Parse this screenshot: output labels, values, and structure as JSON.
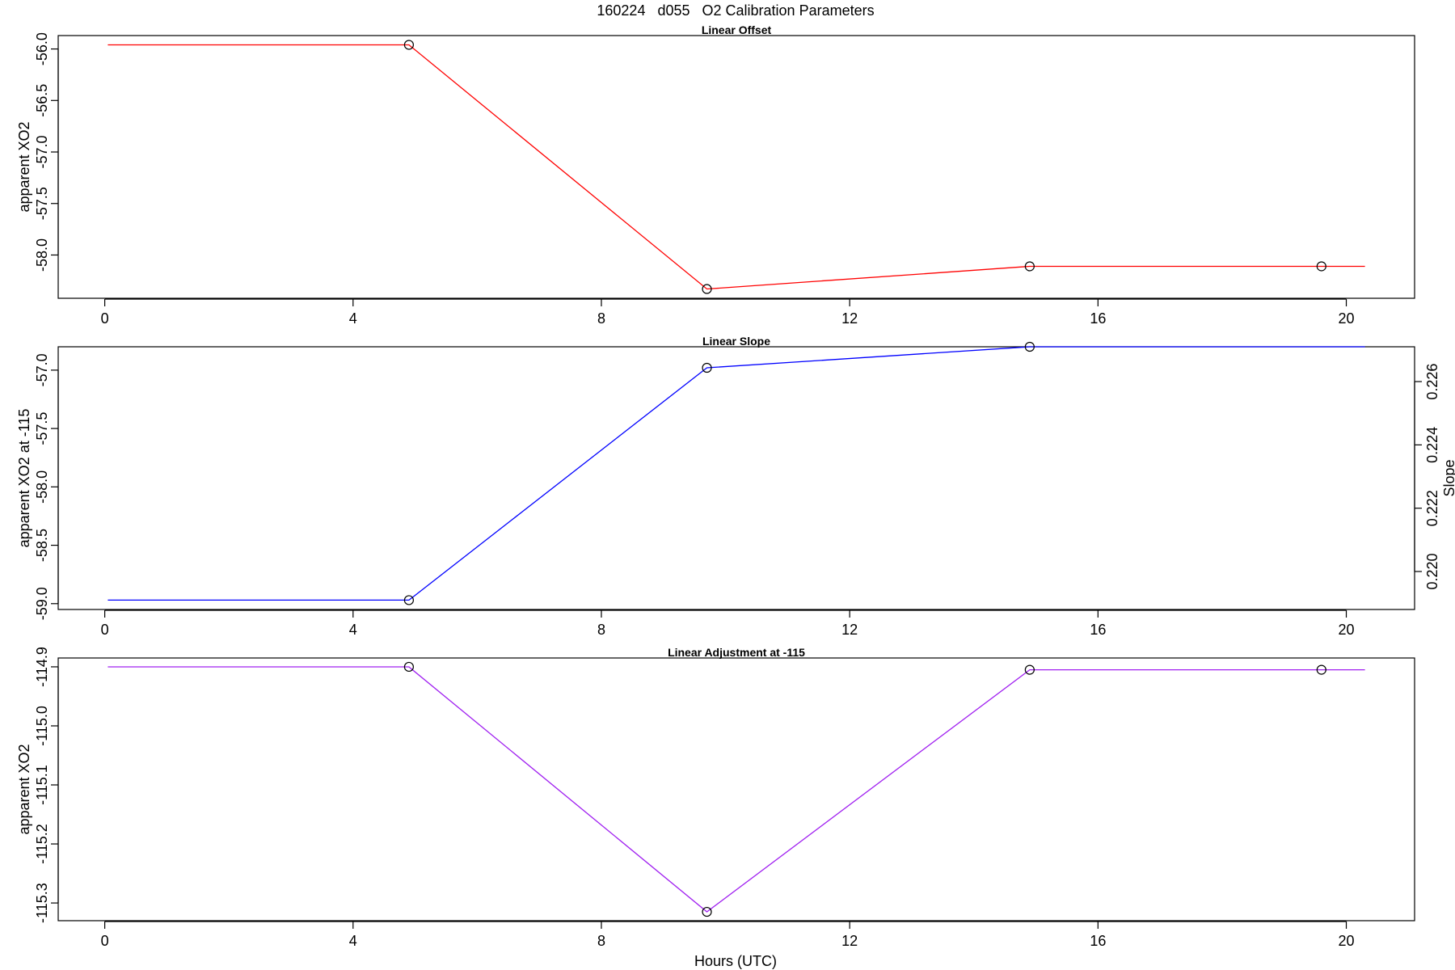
{
  "title": "160224   d055   O2 Calibration Parameters",
  "xlabel": "Hours (UTC)",
  "chart_data": [
    {
      "type": "line",
      "title": "Linear Offset",
      "ylabel": "apparent XO2",
      "color": "#ff0000",
      "x_ticks": [
        0,
        4,
        8,
        12,
        16,
        20
      ],
      "y_ticks": [
        -56.0,
        -56.5,
        -57.0,
        -57.5,
        -58.0
      ],
      "xlim": [
        -0.75,
        21.1
      ],
      "ylim": [
        -58.42,
        -55.87
      ],
      "line_x": [
        0.05,
        4.9,
        9.7,
        14.9,
        19.6,
        20.3
      ],
      "line_y": [
        -55.96,
        -55.96,
        -58.33,
        -58.11,
        -58.11,
        -58.11
      ],
      "points_x": [
        4.9,
        9.7,
        14.9,
        19.6
      ],
      "points_y": [
        -55.96,
        -58.33,
        -58.11,
        -58.11
      ]
    },
    {
      "type": "line",
      "title": "Linear Slope",
      "ylabel": "apparent XO2 at -115",
      "y2label": "Slope",
      "color": "#0000ff",
      "x_ticks": [
        0,
        4,
        8,
        12,
        16,
        20
      ],
      "y_ticks": [
        -57.0,
        -57.5,
        -58.0,
        -58.5,
        -59.0
      ],
      "y2_ticks": [
        0.22,
        0.222,
        0.224,
        0.226
      ],
      "y2_tick_labels": [
        "0.220",
        "0.222",
        "0.224",
        "0.226"
      ],
      "xlim": [
        -0.75,
        21.1
      ],
      "ylim": [
        -59.05,
        -56.8
      ],
      "y2lim": [
        0.2188,
        0.2271
      ],
      "line_x": [
        0.05,
        4.9,
        9.7,
        14.9,
        20.3
      ],
      "line_y": [
        -58.97,
        -58.97,
        -56.98,
        -56.8,
        -56.8
      ],
      "points_x": [
        4.9,
        9.7,
        14.9
      ],
      "points_y": [
        -58.97,
        -56.98,
        -56.8
      ]
    },
    {
      "type": "line",
      "title": "Linear Adjustment at -115",
      "ylabel": "apparent XO2",
      "color": "#a020f0",
      "x_ticks": [
        0,
        4,
        8,
        12,
        16,
        20
      ],
      "y_ticks": [
        -114.9,
        -115.0,
        -115.1,
        -115.2,
        -115.3
      ],
      "xlim": [
        -0.75,
        21.1
      ],
      "ylim": [
        -115.33,
        -114.885
      ],
      "line_x": [
        0.05,
        4.9,
        9.7,
        14.9,
        19.6,
        20.3
      ],
      "line_y": [
        -114.9,
        -114.9,
        -115.315,
        -114.905,
        -114.905,
        -114.905
      ],
      "points_x": [
        4.9,
        9.7,
        14.9,
        19.6
      ],
      "points_y": [
        -114.9,
        -115.315,
        -114.905,
        -114.905
      ]
    }
  ]
}
